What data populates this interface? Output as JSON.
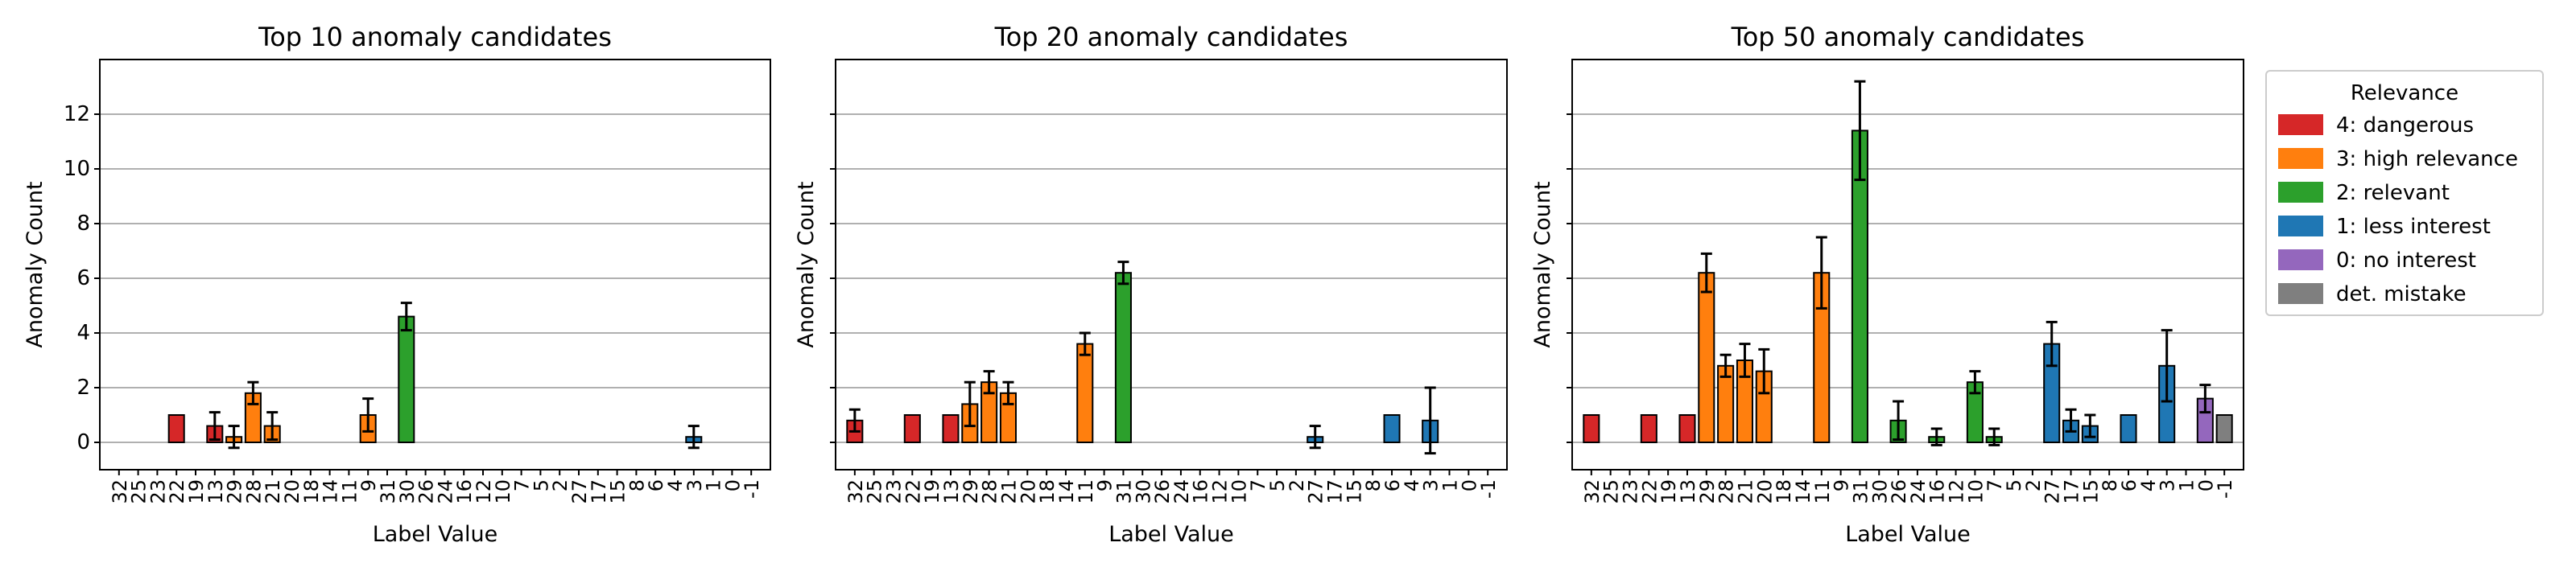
{
  "legend": {
    "title": "Relevance",
    "placement": "right",
    "entries": [
      {
        "level": 4,
        "label": "4: dangerous",
        "color": "#d62728"
      },
      {
        "level": 3,
        "label": "3: high relevance",
        "color": "#ff7f0e"
      },
      {
        "level": 2,
        "label": "2: relevant",
        "color": "#2ca02c"
      },
      {
        "level": 1,
        "label": "1: less interest",
        "color": "#1f77b4"
      },
      {
        "level": 0,
        "label": "0: no interest",
        "color": "#9467bd"
      },
      {
        "level": -1,
        "label": "det. mistake",
        "color": "#7f7f7f"
      }
    ]
  },
  "chart_data": [
    {
      "type": "bar",
      "title": "Top 10 anomaly candidates",
      "xlabel": "Label Value",
      "ylabel": "Anomaly Count",
      "ylim": [
        -1,
        14
      ],
      "yticks": [
        0,
        2,
        4,
        6,
        8,
        10,
        12
      ],
      "grid": "y",
      "categories": [
        "32",
        "25",
        "23",
        "22",
        "19",
        "13",
        "29",
        "28",
        "21",
        "20",
        "18",
        "14",
        "11",
        "9",
        "31",
        "30",
        "26",
        "24",
        "16",
        "12",
        "10",
        "7",
        "5",
        "2",
        "27",
        "17",
        "15",
        "8",
        "6",
        "4",
        "3",
        "1",
        "0",
        "-1"
      ],
      "relevance": [
        4,
        4,
        4,
        4,
        4,
        4,
        3,
        3,
        3,
        3,
        3,
        3,
        3,
        3,
        2,
        2,
        2,
        2,
        2,
        2,
        2,
        2,
        2,
        1,
        1,
        1,
        1,
        1,
        1,
        1,
        1,
        1,
        0,
        -1
      ],
      "values": [
        0,
        0,
        0,
        1,
        0,
        0.6,
        0.2,
        1.8,
        0.6,
        0,
        0,
        0,
        0,
        1,
        0,
        4.6,
        0,
        0,
        0,
        0,
        0,
        0,
        0,
        0,
        0,
        0,
        0,
        0,
        0,
        0,
        0.2,
        0,
        0,
        0
      ],
      "errors": [
        0,
        0,
        0,
        0,
        0,
        0.5,
        0.4,
        0.4,
        0.5,
        0,
        0,
        0,
        0,
        0.6,
        0,
        0.5,
        0,
        0,
        0,
        0,
        0,
        0,
        0,
        0,
        0,
        0,
        0,
        0,
        0,
        0,
        0.4,
        0,
        0,
        0
      ]
    },
    {
      "type": "bar",
      "title": "Top 20 anomaly candidates",
      "xlabel": "Label Value",
      "ylabel": "Anomaly Count",
      "ylim": [
        -1,
        14
      ],
      "yticks": [
        0,
        2,
        4,
        6,
        8,
        10,
        12
      ],
      "grid": "y",
      "categories": [
        "32",
        "25",
        "23",
        "22",
        "19",
        "13",
        "29",
        "28",
        "21",
        "20",
        "18",
        "14",
        "11",
        "9",
        "31",
        "30",
        "26",
        "24",
        "16",
        "12",
        "10",
        "7",
        "5",
        "2",
        "27",
        "17",
        "15",
        "8",
        "6",
        "4",
        "3",
        "1",
        "0",
        "-1"
      ],
      "relevance": [
        4,
        4,
        4,
        4,
        4,
        4,
        3,
        3,
        3,
        3,
        3,
        3,
        3,
        3,
        2,
        2,
        2,
        2,
        2,
        2,
        2,
        2,
        2,
        1,
        1,
        1,
        1,
        1,
        1,
        1,
        1,
        1,
        0,
        -1
      ],
      "values": [
        0.8,
        0,
        0,
        1,
        0,
        1,
        1.4,
        2.2,
        1.8,
        0,
        0,
        0,
        3.6,
        0,
        6.2,
        0,
        0,
        0,
        0,
        0,
        0,
        0,
        0,
        0,
        0.2,
        0,
        0,
        0,
        1,
        0,
        0.8,
        0,
        0,
        0
      ],
      "errors": [
        0.4,
        0,
        0,
        0,
        0,
        0,
        0.8,
        0.4,
        0.4,
        0,
        0,
        0,
        0.4,
        0,
        0.4,
        0,
        0,
        0,
        0,
        0,
        0,
        0,
        0,
        0,
        0.4,
        0,
        0,
        0,
        0,
        0,
        1.2,
        0,
        0,
        0
      ]
    },
    {
      "type": "bar",
      "title": "Top 50 anomaly candidates",
      "xlabel": "Label Value",
      "ylabel": "Anomaly Count",
      "ylim": [
        -1,
        14
      ],
      "yticks": [
        0,
        2,
        4,
        6,
        8,
        10,
        12
      ],
      "grid": "y",
      "categories": [
        "32",
        "25",
        "23",
        "22",
        "19",
        "13",
        "29",
        "28",
        "21",
        "20",
        "18",
        "14",
        "11",
        "9",
        "31",
        "30",
        "26",
        "24",
        "16",
        "12",
        "10",
        "7",
        "5",
        "2",
        "27",
        "17",
        "15",
        "8",
        "6",
        "4",
        "3",
        "1",
        "0",
        "-1"
      ],
      "relevance": [
        4,
        4,
        4,
        4,
        4,
        4,
        3,
        3,
        3,
        3,
        3,
        3,
        3,
        3,
        2,
        2,
        2,
        2,
        2,
        2,
        2,
        2,
        2,
        1,
        1,
        1,
        1,
        1,
        1,
        1,
        1,
        1,
        0,
        -1
      ],
      "values": [
        1,
        0,
        0,
        1,
        0,
        1,
        6.2,
        2.8,
        3,
        2.6,
        0,
        0,
        6.2,
        0,
        11.4,
        0,
        0.8,
        0,
        0.2,
        0,
        2.2,
        0.2,
        0,
        0,
        3.6,
        0.8,
        0.6,
        0,
        1,
        0,
        2.8,
        0,
        1.6,
        1
      ],
      "errors": [
        0,
        0,
        0,
        0,
        0,
        0,
        0.7,
        0.4,
        0.6,
        0.8,
        0,
        0,
        1.3,
        0,
        1.8,
        0,
        0.7,
        0,
        0.3,
        0,
        0.4,
        0.3,
        0,
        0,
        0.8,
        0.4,
        0.4,
        0,
        0,
        0,
        1.3,
        0,
        0.5,
        0
      ]
    }
  ]
}
